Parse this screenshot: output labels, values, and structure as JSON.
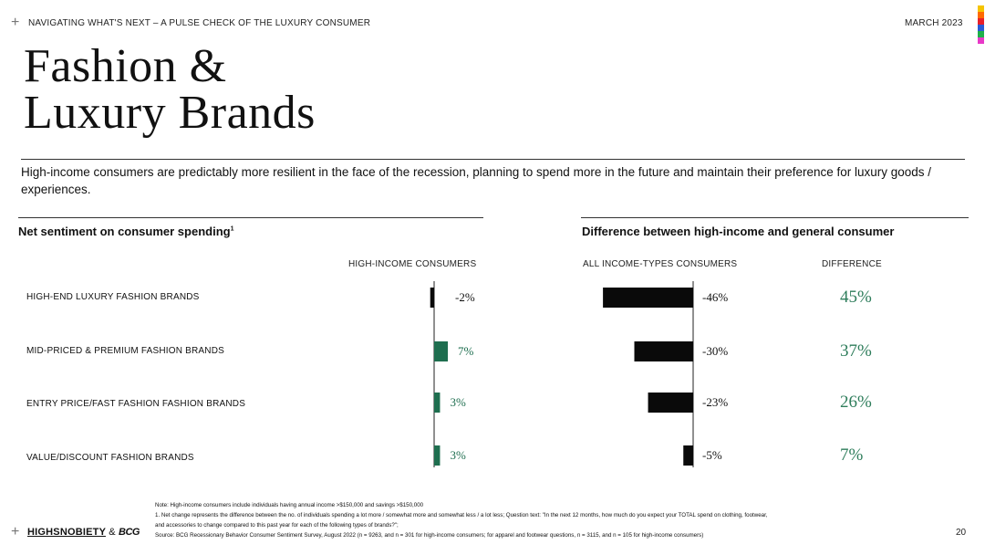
{
  "header": {
    "left": "NAVIGATING WHAT'S NEXT – A PULSE CHECK OF THE LUXURY CONSUMER",
    "right": "MARCH 2023"
  },
  "title": {
    "line1": "Fashion &",
    "line2": "Luxury Brands"
  },
  "intro": "High-income consumers are predictably more resilient in the face of the recession, planning to spend more in the future and maintain their preference for luxury goods / experiences.",
  "left_section": {
    "title": "Net sentiment on consumer spending",
    "sup": "1"
  },
  "right_section": {
    "title": "Difference between high-income and general consumer"
  },
  "colors": {
    "positive": "#1e6e4f",
    "negative": "#0a0a0a",
    "difference_text": "#2e7d5b",
    "stripe": [
      "#f5c400",
      "#ff6a00",
      "#e8202a",
      "#2a5bd7",
      "#1fb04a",
      "#e838c8"
    ]
  },
  "chart_data": [
    {
      "type": "bar",
      "orientation": "horizontal",
      "title": "Net sentiment on consumer spending",
      "series": [
        {
          "name": "HIGH-INCOME CONSUMERS",
          "values": [
            -2,
            7,
            3,
            3
          ]
        }
      ],
      "categories": [
        "HIGH-END LUXURY FASHION BRANDS",
        "MID-PRICED & PREMIUM FASHION BRANDS",
        "ENTRY PRICE/FAST FASHION FASHION BRANDS",
        "VALUE/DISCOUNT FASHION BRANDS"
      ],
      "labels": [
        "-2%",
        "7%",
        "3%",
        "3%"
      ],
      "unit": "%"
    },
    {
      "type": "bar",
      "orientation": "horizontal",
      "title": "Difference between high-income and general consumer",
      "series": [
        {
          "name": "ALL INCOME-TYPES CONSUMERS",
          "values": [
            -46,
            -30,
            -23,
            -5
          ]
        }
      ],
      "labels": [
        "-46%",
        "-30%",
        "-23%",
        "-5%"
      ],
      "difference_header": "DIFFERENCE",
      "difference_values": [
        45,
        37,
        26,
        7
      ],
      "difference_labels": [
        "45%",
        "37%",
        "26%",
        "7%"
      ],
      "unit": "%"
    }
  ],
  "notes": {
    "line1": "Note: High-income consumers include individuals having annual income >$150,000 and savings >$150,000",
    "line2": "1. Net change represents the difference between the no. of individuals spending a lot more / somewhat more and somewhat less / a lot less; Question text: \"In the next 12 months, how much do you expect your TOTAL spend on clothing, footwear,",
    "line3": "and accessories to change compared to this past year for each of the following types of brands?\";",
    "line4": "Source: BCG Recessionary Behavior Consumer Sentiment Survey, August 2022 (n = 9263, and n = 301 for high-income consumers; for apparel and footwear questions, n = 3115, and n = 105 for high-income consumers)"
  },
  "footer": {
    "logo_left": "HIGHSNOBIETY",
    "logo_amp": "&",
    "logo_right": "BCG",
    "page": "20"
  }
}
